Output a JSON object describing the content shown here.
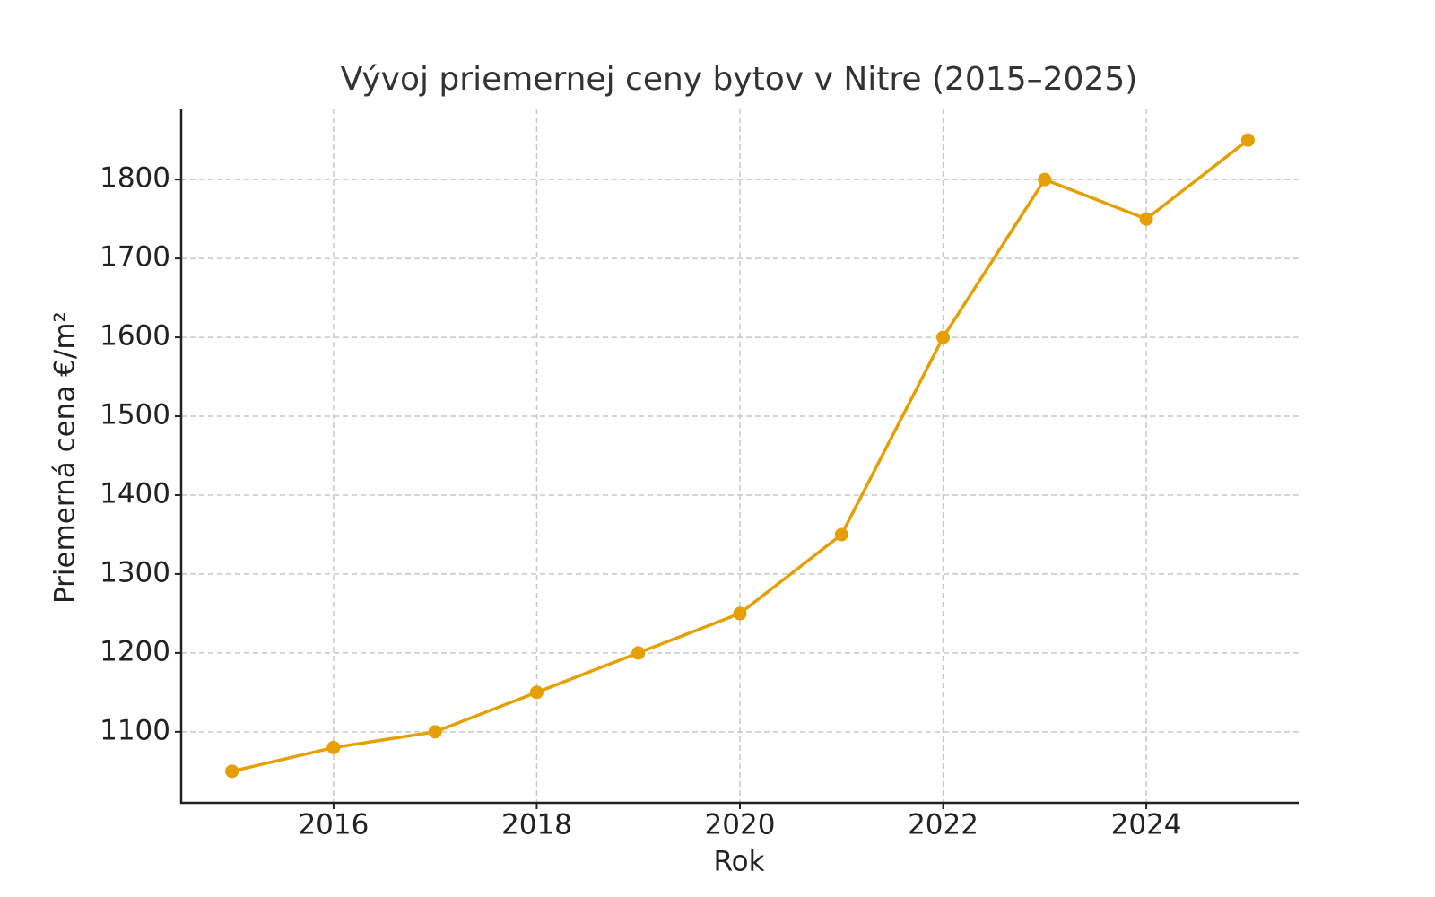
{
  "chart_data": {
    "type": "line",
    "title": "Vývoj priemernej ceny bytov v Nitre (2015–2025)",
    "x_label": "Rok",
    "y_label": "Priemerná cena €/m²",
    "x": [
      2015,
      2016,
      2017,
      2018,
      2019,
      2020,
      2021,
      2022,
      2023,
      2024,
      2025
    ],
    "series": [
      {
        "name": "Priemerná cena",
        "color": "#e69f00",
        "values": [
          1050,
          1080,
          1100,
          1150,
          1200,
          1250,
          1350,
          1600,
          1800,
          1750,
          1850
        ]
      }
    ],
    "xlim": [
      2014.5,
      2025.5
    ],
    "xticks": [
      2016,
      2018,
      2020,
      2022,
      2024
    ],
    "ylim": [
      1010,
      1890
    ],
    "yticks": [
      1100,
      1200,
      1300,
      1400,
      1500,
      1600,
      1700,
      1800
    ],
    "grid": true,
    "legend": false
  }
}
